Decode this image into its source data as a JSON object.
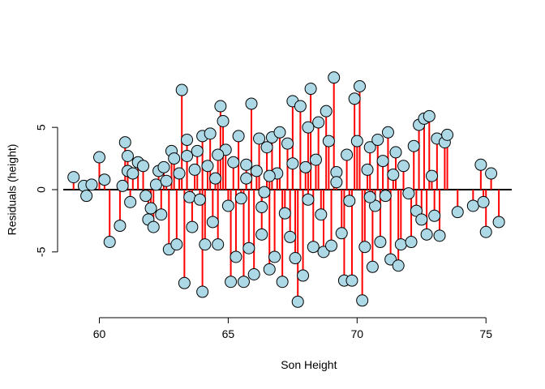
{
  "chart_data": {
    "type": "scatter",
    "title": "",
    "xlabel": "Son Height",
    "ylabel": "Residuals (height)",
    "xlim": [
      58.6,
      76.0
    ],
    "ylim": [
      -9.5,
      9.5
    ],
    "xticks": [
      60,
      65,
      70,
      75
    ],
    "yticks": [
      -5,
      0,
      5
    ],
    "reference_line_y": 0,
    "grid": false,
    "legend": "none",
    "point_fill": "#add8e6",
    "point_edge": "#000000",
    "stem_color": "#ff0000",
    "series": [
      {
        "points": [
          [
            59.0,
            1.0
          ],
          [
            59.4,
            0.3
          ],
          [
            59.5,
            -0.5
          ],
          [
            59.7,
            0.4
          ],
          [
            60.0,
            2.6
          ],
          [
            60.2,
            0.8
          ],
          [
            60.4,
            -4.2
          ],
          [
            60.8,
            -2.9
          ],
          [
            60.9,
            0.3
          ],
          [
            61.0,
            3.8
          ],
          [
            61.1,
            2.7
          ],
          [
            61.1,
            1.5
          ],
          [
            61.2,
            -1.0
          ],
          [
            61.3,
            1.3
          ],
          [
            61.5,
            2.2
          ],
          [
            61.7,
            1.9
          ],
          [
            61.8,
            -0.5
          ],
          [
            61.9,
            -2.4
          ],
          [
            62.0,
            -1.5
          ],
          [
            62.1,
            -3.0
          ],
          [
            62.2,
            0.4
          ],
          [
            62.3,
            1.5
          ],
          [
            62.4,
            -2.0
          ],
          [
            62.5,
            1.8
          ],
          [
            62.6,
            0.7
          ],
          [
            62.7,
            -4.8
          ],
          [
            62.8,
            3.1
          ],
          [
            62.9,
            2.5
          ],
          [
            63.0,
            -4.4
          ],
          [
            63.1,
            1.3
          ],
          [
            63.2,
            8.0
          ],
          [
            63.3,
            -7.5
          ],
          [
            63.4,
            4.0
          ],
          [
            63.4,
            2.7
          ],
          [
            63.5,
            -0.6
          ],
          [
            63.6,
            -3.0
          ],
          [
            63.7,
            1.6
          ],
          [
            63.8,
            3.1
          ],
          [
            63.9,
            -0.8
          ],
          [
            64.0,
            4.3
          ],
          [
            64.0,
            -8.2
          ],
          [
            64.1,
            -4.4
          ],
          [
            64.2,
            1.9
          ],
          [
            64.3,
            4.5
          ],
          [
            64.4,
            -2.6
          ],
          [
            64.5,
            0.9
          ],
          [
            64.6,
            -4.4
          ],
          [
            64.7,
            6.7
          ],
          [
            64.8,
            5.5
          ],
          [
            64.9,
            3.2
          ],
          [
            65.0,
            -1.3
          ],
          [
            65.1,
            -7.4
          ],
          [
            65.2,
            2.2
          ],
          [
            65.3,
            -5.4
          ],
          [
            65.4,
            4.3
          ],
          [
            65.5,
            -0.7
          ],
          [
            65.6,
            -7.4
          ],
          [
            65.7,
            2.0
          ],
          [
            65.8,
            -4.7
          ],
          [
            65.9,
            6.9
          ],
          [
            66.0,
            -6.8
          ],
          [
            66.1,
            1.5
          ],
          [
            66.2,
            4.1
          ],
          [
            66.3,
            -3.6
          ],
          [
            66.4,
            -0.2
          ],
          [
            66.5,
            3.4
          ],
          [
            66.6,
            -6.4
          ],
          [
            66.7,
            4.2
          ],
          [
            66.8,
            -5.4
          ],
          [
            66.9,
            1.3
          ],
          [
            67.0,
            4.6
          ],
          [
            67.1,
            -7.4
          ],
          [
            67.2,
            -1.9
          ],
          [
            67.3,
            3.7
          ],
          [
            67.4,
            -3.8
          ],
          [
            67.5,
            7.1
          ],
          [
            67.6,
            -5.5
          ],
          [
            67.7,
            -9.0
          ],
          [
            67.8,
            6.7
          ],
          [
            67.9,
            -6.9
          ],
          [
            68.0,
            1.8
          ],
          [
            68.1,
            5.0
          ],
          [
            68.2,
            8.1
          ],
          [
            68.3,
            -4.6
          ],
          [
            68.4,
            2.4
          ],
          [
            68.5,
            5.4
          ],
          [
            68.6,
            -2.0
          ],
          [
            68.7,
            -5.0
          ],
          [
            68.8,
            6.3
          ],
          [
            68.9,
            3.9
          ],
          [
            69.0,
            -4.5
          ],
          [
            69.1,
            9.0
          ],
          [
            69.2,
            1.4
          ],
          [
            69.4,
            -3.5
          ],
          [
            69.5,
            -7.3
          ],
          [
            69.6,
            2.8
          ],
          [
            69.7,
            -0.9
          ],
          [
            69.8,
            -7.3
          ],
          [
            69.9,
            7.3
          ],
          [
            70.0,
            3.9
          ],
          [
            70.1,
            8.3
          ],
          [
            70.2,
            -8.9
          ],
          [
            70.3,
            -4.6
          ],
          [
            70.4,
            1.6
          ],
          [
            70.5,
            3.4
          ],
          [
            70.6,
            -6.2
          ],
          [
            70.7,
            -1.3
          ],
          [
            70.8,
            4.0
          ],
          [
            70.9,
            -4.2
          ],
          [
            71.0,
            2.3
          ],
          [
            71.1,
            -0.5
          ],
          [
            71.2,
            4.6
          ],
          [
            71.3,
            -5.6
          ],
          [
            71.4,
            1.2
          ],
          [
            71.5,
            3.0
          ],
          [
            71.6,
            -6.1
          ],
          [
            71.7,
            -4.4
          ],
          [
            71.8,
            1.9
          ],
          [
            72.0,
            -0.3
          ],
          [
            72.1,
            -4.2
          ],
          [
            72.2,
            3.5
          ],
          [
            72.3,
            -1.7
          ],
          [
            72.4,
            5.2
          ],
          [
            72.5,
            -2.4
          ],
          [
            72.6,
            5.7
          ],
          [
            72.7,
            -3.6
          ],
          [
            72.8,
            5.9
          ],
          [
            72.9,
            1.1
          ],
          [
            73.0,
            -2.1
          ],
          [
            73.1,
            4.1
          ],
          [
            73.2,
            -3.7
          ],
          [
            73.4,
            3.8
          ],
          [
            73.5,
            4.4
          ],
          [
            73.9,
            -1.8
          ],
          [
            74.5,
            -1.3
          ],
          [
            74.8,
            2.0
          ],
          [
            75.0,
            -3.4
          ],
          [
            75.2,
            1.3
          ],
          [
            75.5,
            -2.6
          ],
          [
            74.9,
            -1.0
          ],
          [
            64.6,
            2.8
          ],
          [
            65.7,
            0.9
          ],
          [
            66.6,
            1.1
          ],
          [
            68.1,
            -0.8
          ],
          [
            69.2,
            0.6
          ],
          [
            70.5,
            -0.6
          ],
          [
            67.5,
            2.1
          ],
          [
            66.3,
            -1.4
          ]
        ]
      }
    ]
  }
}
